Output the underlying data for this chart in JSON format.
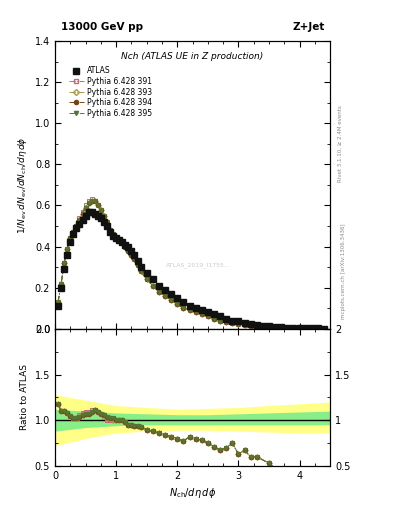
{
  "title_top": "13000 GeV pp",
  "title_right": "Z+Jet",
  "plot_title": "Nch (ATLAS UE in Z production)",
  "ylabel_main": "1/N_{ev} dN_{ev}/dN_{ch}/d\\eta d\\phi",
  "ylabel_ratio": "Ratio to ATLAS",
  "xlabel": "N_{ch}/d\\eta d\\phi",
  "atlas_x": [
    0.05,
    0.1,
    0.15,
    0.2,
    0.25,
    0.3,
    0.35,
    0.4,
    0.45,
    0.5,
    0.55,
    0.6,
    0.65,
    0.7,
    0.75,
    0.8,
    0.85,
    0.9,
    0.95,
    1.0,
    1.05,
    1.1,
    1.15,
    1.2,
    1.25,
    1.3,
    1.35,
    1.4,
    1.5,
    1.6,
    1.7,
    1.8,
    1.9,
    2.0,
    2.1,
    2.2,
    2.3,
    2.4,
    2.5,
    2.6,
    2.7,
    2.8,
    2.9,
    3.0,
    3.1,
    3.2,
    3.3,
    3.4,
    3.5,
    3.6,
    3.7,
    3.8,
    3.9,
    4.0,
    4.1,
    4.2,
    4.3,
    4.4
  ],
  "atlas_y": [
    0.11,
    0.2,
    0.29,
    0.36,
    0.42,
    0.46,
    0.49,
    0.51,
    0.53,
    0.55,
    0.57,
    0.57,
    0.56,
    0.55,
    0.54,
    0.52,
    0.5,
    0.47,
    0.45,
    0.44,
    0.43,
    0.42,
    0.41,
    0.4,
    0.38,
    0.36,
    0.33,
    0.3,
    0.27,
    0.24,
    0.21,
    0.19,
    0.17,
    0.15,
    0.13,
    0.11,
    0.1,
    0.09,
    0.08,
    0.07,
    0.06,
    0.05,
    0.04,
    0.04,
    0.03,
    0.025,
    0.02,
    0.015,
    0.012,
    0.01,
    0.008,
    0.006,
    0.005,
    0.004,
    0.003,
    0.002,
    0.002,
    0.001
  ],
  "py391_x": [
    0.05,
    0.1,
    0.15,
    0.2,
    0.25,
    0.3,
    0.35,
    0.4,
    0.45,
    0.5,
    0.55,
    0.6,
    0.65,
    0.7,
    0.75,
    0.8,
    0.85,
    0.9,
    0.95,
    1.0,
    1.05,
    1.1,
    1.15,
    1.2,
    1.25,
    1.3,
    1.35,
    1.4,
    1.5,
    1.6,
    1.7,
    1.8,
    1.9,
    2.0,
    2.1,
    2.2,
    2.3,
    2.4,
    2.5,
    2.6,
    2.7,
    2.8,
    2.9,
    3.0,
    3.1,
    3.2,
    3.3,
    3.5,
    3.7,
    3.9,
    4.1,
    4.3
  ],
  "py391_y": [
    0.13,
    0.22,
    0.32,
    0.39,
    0.44,
    0.47,
    0.5,
    0.54,
    0.57,
    0.6,
    0.62,
    0.63,
    0.62,
    0.6,
    0.58,
    0.54,
    0.5,
    0.47,
    0.45,
    0.44,
    0.43,
    0.42,
    0.4,
    0.38,
    0.36,
    0.34,
    0.31,
    0.28,
    0.24,
    0.21,
    0.18,
    0.16,
    0.14,
    0.12,
    0.1,
    0.09,
    0.08,
    0.07,
    0.06,
    0.05,
    0.04,
    0.035,
    0.03,
    0.025,
    0.02,
    0.015,
    0.012,
    0.008,
    0.005,
    0.003,
    0.002,
    0.001
  ],
  "py393_x": [
    0.05,
    0.1,
    0.15,
    0.2,
    0.25,
    0.3,
    0.35,
    0.4,
    0.45,
    0.5,
    0.55,
    0.6,
    0.65,
    0.7,
    0.75,
    0.8,
    0.85,
    0.9,
    0.95,
    1.0,
    1.05,
    1.1,
    1.15,
    1.2,
    1.25,
    1.3,
    1.35,
    1.4,
    1.5,
    1.6,
    1.7,
    1.8,
    1.9,
    2.0,
    2.1,
    2.2,
    2.3,
    2.4,
    2.5,
    2.6,
    2.7,
    2.8,
    2.9,
    3.0,
    3.1,
    3.2,
    3.3,
    3.5,
    3.7,
    3.9,
    4.1,
    4.3
  ],
  "py393_y": [
    0.13,
    0.22,
    0.32,
    0.39,
    0.44,
    0.47,
    0.5,
    0.53,
    0.56,
    0.59,
    0.61,
    0.62,
    0.62,
    0.6,
    0.58,
    0.55,
    0.51,
    0.48,
    0.45,
    0.44,
    0.43,
    0.42,
    0.4,
    0.38,
    0.36,
    0.34,
    0.31,
    0.28,
    0.24,
    0.21,
    0.18,
    0.16,
    0.14,
    0.12,
    0.1,
    0.09,
    0.08,
    0.07,
    0.06,
    0.05,
    0.04,
    0.035,
    0.03,
    0.025,
    0.02,
    0.015,
    0.012,
    0.008,
    0.005,
    0.003,
    0.002,
    0.001
  ],
  "py394_x": [
    0.05,
    0.1,
    0.15,
    0.2,
    0.25,
    0.3,
    0.35,
    0.4,
    0.45,
    0.5,
    0.55,
    0.6,
    0.65,
    0.7,
    0.75,
    0.8,
    0.85,
    0.9,
    0.95,
    1.0,
    1.05,
    1.1,
    1.15,
    1.2,
    1.25,
    1.3,
    1.35,
    1.4,
    1.5,
    1.6,
    1.7,
    1.8,
    1.9,
    2.0,
    2.1,
    2.2,
    2.3,
    2.4,
    2.5,
    2.6,
    2.7,
    2.8,
    2.9,
    3.0,
    3.1,
    3.2,
    3.3,
    3.5,
    3.7,
    3.9,
    4.1,
    4.3
  ],
  "py394_y": [
    0.13,
    0.22,
    0.32,
    0.39,
    0.44,
    0.47,
    0.5,
    0.53,
    0.56,
    0.59,
    0.61,
    0.62,
    0.62,
    0.6,
    0.58,
    0.55,
    0.52,
    0.48,
    0.46,
    0.44,
    0.43,
    0.42,
    0.4,
    0.38,
    0.36,
    0.34,
    0.31,
    0.28,
    0.24,
    0.21,
    0.18,
    0.16,
    0.14,
    0.12,
    0.1,
    0.09,
    0.08,
    0.07,
    0.06,
    0.05,
    0.04,
    0.035,
    0.03,
    0.025,
    0.02,
    0.015,
    0.012,
    0.008,
    0.005,
    0.003,
    0.002,
    0.001
  ],
  "py395_x": [
    0.05,
    0.1,
    0.15,
    0.2,
    0.25,
    0.3,
    0.35,
    0.4,
    0.45,
    0.5,
    0.55,
    0.6,
    0.65,
    0.7,
    0.75,
    0.8,
    0.85,
    0.9,
    0.95,
    1.0,
    1.05,
    1.1,
    1.15,
    1.2,
    1.25,
    1.3,
    1.35,
    1.4,
    1.5,
    1.6,
    1.7,
    1.8,
    1.9,
    2.0,
    2.1,
    2.2,
    2.3,
    2.4,
    2.5,
    2.6,
    2.7,
    2.8,
    2.9,
    3.0,
    3.1,
    3.2,
    3.3,
    3.5,
    3.7,
    3.9,
    4.1,
    4.3
  ],
  "py395_y": [
    0.13,
    0.22,
    0.32,
    0.39,
    0.44,
    0.47,
    0.5,
    0.53,
    0.56,
    0.59,
    0.61,
    0.62,
    0.62,
    0.6,
    0.58,
    0.55,
    0.52,
    0.48,
    0.46,
    0.44,
    0.43,
    0.42,
    0.4,
    0.38,
    0.36,
    0.34,
    0.31,
    0.28,
    0.24,
    0.21,
    0.18,
    0.16,
    0.14,
    0.12,
    0.1,
    0.09,
    0.08,
    0.07,
    0.06,
    0.05,
    0.04,
    0.035,
    0.03,
    0.025,
    0.02,
    0.015,
    0.012,
    0.008,
    0.005,
    0.003,
    0.002,
    0.001
  ],
  "color_391": "#cc6677",
  "color_393": "#aa9944",
  "color_394": "#774411",
  "color_395": "#557733",
  "color_atlas": "#111111",
  "band_yellow": "#ffff88",
  "band_green": "#88ee88",
  "xlim": [
    0,
    4.5
  ],
  "ylim_main": [
    0,
    1.4
  ],
  "ylim_ratio": [
    0.5,
    2.0
  ],
  "ratio_391": [
    1.18,
    1.1,
    1.1,
    1.08,
    1.05,
    1.02,
    1.02,
    1.06,
    1.08,
    1.09,
    1.09,
    1.11,
    1.11,
    1.09,
    1.07,
    1.04,
    1.0,
    1.0,
    1.0,
    1.0,
    1.0,
    1.0,
    0.98,
    0.95,
    0.95,
    0.94,
    0.94,
    0.93,
    0.89,
    0.88,
    0.86,
    0.84,
    0.82,
    0.8,
    0.77,
    0.82,
    0.8,
    0.78,
    0.75,
    0.71,
    0.67,
    0.7,
    0.75,
    0.63,
    0.67,
    0.6,
    0.6,
    0.53,
    0.42,
    0.38,
    0.33,
    0.25
  ],
  "ratio_393": [
    1.18,
    1.1,
    1.1,
    1.08,
    1.05,
    1.02,
    1.02,
    1.04,
    1.06,
    1.07,
    1.07,
    1.09,
    1.11,
    1.09,
    1.07,
    1.06,
    1.02,
    1.02,
    1.0,
    1.0,
    1.0,
    1.0,
    0.98,
    0.95,
    0.95,
    0.94,
    0.94,
    0.93,
    0.89,
    0.88,
    0.86,
    0.84,
    0.82,
    0.8,
    0.77,
    0.82,
    0.8,
    0.78,
    0.75,
    0.71,
    0.67,
    0.7,
    0.75,
    0.63,
    0.67,
    0.6,
    0.6,
    0.53,
    0.42,
    0.38,
    0.33,
    0.25
  ],
  "ratio_394": [
    1.18,
    1.1,
    1.1,
    1.08,
    1.05,
    1.02,
    1.02,
    1.04,
    1.06,
    1.07,
    1.07,
    1.09,
    1.11,
    1.09,
    1.07,
    1.06,
    1.04,
    1.02,
    1.02,
    1.0,
    1.0,
    1.0,
    0.98,
    0.95,
    0.95,
    0.94,
    0.94,
    0.93,
    0.89,
    0.88,
    0.86,
    0.84,
    0.82,
    0.8,
    0.77,
    0.82,
    0.8,
    0.78,
    0.75,
    0.71,
    0.67,
    0.7,
    0.75,
    0.63,
    0.67,
    0.6,
    0.6,
    0.53,
    0.42,
    0.38,
    0.33,
    0.25
  ],
  "ratio_395": [
    1.18,
    1.1,
    1.1,
    1.08,
    1.05,
    1.02,
    1.02,
    1.04,
    1.06,
    1.07,
    1.07,
    1.09,
    1.11,
    1.09,
    1.07,
    1.06,
    1.04,
    1.02,
    1.02,
    1.0,
    1.0,
    1.0,
    0.98,
    0.95,
    0.95,
    0.94,
    0.94,
    0.93,
    0.89,
    0.88,
    0.86,
    0.84,
    0.82,
    0.8,
    0.77,
    0.82,
    0.8,
    0.78,
    0.75,
    0.71,
    0.67,
    0.7,
    0.75,
    0.63,
    0.67,
    0.6,
    0.6,
    0.53,
    0.42,
    0.38,
    0.33,
    0.25
  ],
  "band_x": [
    0.0,
    0.5,
    1.0,
    1.5,
    2.0,
    2.5,
    3.0,
    3.5,
    4.0,
    4.5
  ],
  "band_green_lo": [
    0.88,
    0.92,
    0.94,
    0.95,
    0.95,
    0.95,
    0.95,
    0.95,
    0.95,
    0.95
  ],
  "band_green_hi": [
    1.12,
    1.1,
    1.08,
    1.07,
    1.06,
    1.06,
    1.07,
    1.08,
    1.09,
    1.1
  ],
  "band_yellow_lo": [
    0.72,
    0.8,
    0.86,
    0.88,
    0.89,
    0.89,
    0.88,
    0.87,
    0.86,
    0.86
  ],
  "band_yellow_hi": [
    1.28,
    1.22,
    1.16,
    1.14,
    1.12,
    1.13,
    1.14,
    1.16,
    1.18,
    1.2
  ]
}
